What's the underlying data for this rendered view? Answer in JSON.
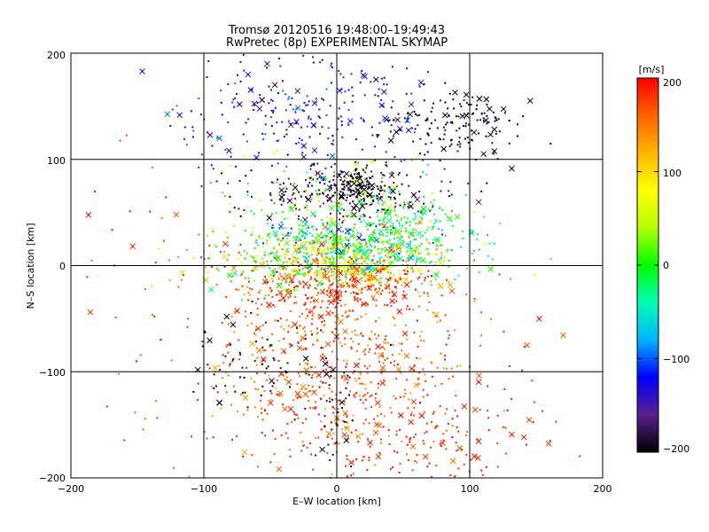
{
  "chart_data": {
    "type": "scatter",
    "title": "Tromsø 20120516 19:48:00–19:49:43",
    "subtitle": "RwPretec (8p) EXPERIMENTAL SKYMAP",
    "xlabel": "E–W location [km]",
    "ylabel": "N–S location [km]",
    "xlim": [
      -200,
      200
    ],
    "ylim": [
      -200,
      200
    ],
    "x_ticks": [
      "−200",
      "−100",
      "0",
      "100",
      "200"
    ],
    "y_ticks": [
      "200",
      "100",
      "0",
      "−100",
      "−200"
    ],
    "grid": true,
    "colorbar": {
      "label": "[m/s]",
      "range": [
        -200,
        200
      ],
      "tick_labels": [
        "200",
        "100",
        "0",
        "−100",
        "−200"
      ],
      "colormap": [
        "#000000",
        "#5a1f8c",
        "#0000ff",
        "#00b4ff",
        "#00ffb4",
        "#00ff00",
        "#b4ff00",
        "#ffff00",
        "#ffb400",
        "#ff6400",
        "#ff0000"
      ]
    },
    "markers": {
      "point": "dot",
      "cross": "x"
    },
    "clusters": [
      {
        "cx": 0,
        "cy": -80,
        "sx": 45,
        "sy": 55,
        "n": 520,
        "v": [
          120,
          200
        ]
      },
      {
        "cx": 20,
        "cy": -120,
        "sx": 60,
        "sy": 40,
        "n": 200,
        "v": [
          150,
          200
        ]
      },
      {
        "cx": 0,
        "cy": 5,
        "sx": 45,
        "sy": 14,
        "n": 650,
        "v": [
          -40,
          160
        ]
      },
      {
        "cx": 10,
        "cy": 22,
        "sx": 40,
        "sy": 14,
        "n": 300,
        "v": [
          -120,
          40
        ]
      },
      {
        "cx": 50,
        "cy": 35,
        "sx": 20,
        "sy": 15,
        "n": 140,
        "v": [
          -60,
          20
        ]
      },
      {
        "cx": 0,
        "cy": -20,
        "sx": 35,
        "sy": 14,
        "n": 250,
        "v": [
          160,
          200
        ]
      },
      {
        "cx": 10,
        "cy": 70,
        "sx": 40,
        "sy": 15,
        "n": 230,
        "v": [
          -200,
          -160
        ]
      },
      {
        "cx": 15,
        "cy": 75,
        "sx": 10,
        "sy": 8,
        "n": 110,
        "v": [
          -200,
          -190
        ]
      },
      {
        "cx": 85,
        "cy": 135,
        "sx": 25,
        "sy": 15,
        "n": 150,
        "v": [
          -200,
          -180
        ]
      },
      {
        "cx": -30,
        "cy": 135,
        "sx": 45,
        "sy": 30,
        "n": 190,
        "v": [
          -140,
          -90
        ]
      },
      {
        "cx": 10,
        "cy": 160,
        "sx": 40,
        "sy": 20,
        "n": 70,
        "v": [
          -190,
          -120
        ]
      },
      {
        "cx": 0,
        "cy": 60,
        "sx": 45,
        "sy": 25,
        "n": 140,
        "v": [
          -40,
          80
        ]
      },
      {
        "cx": -55,
        "cy": -95,
        "sx": 25,
        "sy": 25,
        "n": 70,
        "v": [
          -200,
          -180
        ]
      },
      {
        "cx": 0,
        "cy": -150,
        "sx": 6,
        "sy": 25,
        "n": 40,
        "v": [
          -200,
          -180
        ]
      },
      {
        "cx": 60,
        "cy": -170,
        "sx": 60,
        "sy": 20,
        "n": 130,
        "v": [
          170,
          200
        ]
      },
      {
        "cx": -120,
        "cy": -20,
        "sx": 50,
        "sy": 60,
        "n": 60,
        "v": [
          150,
          200
        ]
      }
    ],
    "n_crosses": 420
  }
}
